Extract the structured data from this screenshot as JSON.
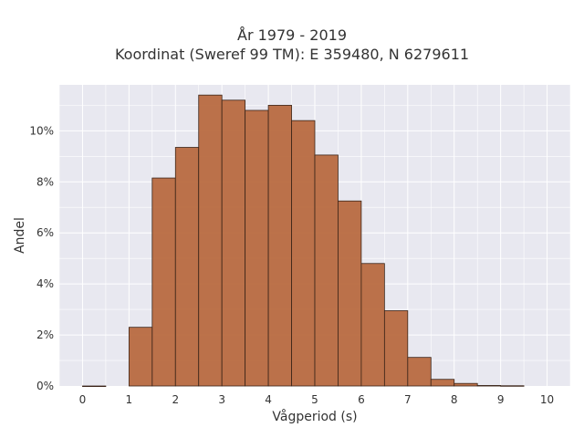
{
  "chart_data": {
    "type": "bar",
    "title_line1": "År 1979 - 2019",
    "title_line2": "Koordinat (Sweref 99 TM): E 359480, N 6279611",
    "xlabel": "Vågperiod (s)",
    "ylabel": "Andel",
    "bin_width": 0.5,
    "bins": [
      {
        "start": 0.0,
        "value": 0.0
      },
      {
        "start": 1.0,
        "value": 2.3
      },
      {
        "start": 1.5,
        "value": 8.15
      },
      {
        "start": 2.0,
        "value": 9.35
      },
      {
        "start": 2.5,
        "value": 11.4
      },
      {
        "start": 3.0,
        "value": 11.2
      },
      {
        "start": 3.5,
        "value": 10.8
      },
      {
        "start": 4.0,
        "value": 11.0
      },
      {
        "start": 4.5,
        "value": 10.4
      },
      {
        "start": 5.0,
        "value": 9.05
      },
      {
        "start": 5.5,
        "value": 7.25
      },
      {
        "start": 6.0,
        "value": 4.8
      },
      {
        "start": 6.5,
        "value": 2.95
      },
      {
        "start": 7.0,
        "value": 1.12
      },
      {
        "start": 7.5,
        "value": 0.26
      },
      {
        "start": 8.0,
        "value": 0.1
      },
      {
        "start": 8.5,
        "value": 0.02
      },
      {
        "start": 9.0,
        "value": 0.01
      }
    ],
    "xlim": [
      -0.5,
      10.5
    ],
    "ylim": [
      0,
      11.8
    ],
    "x_ticks": [
      0,
      1,
      2,
      3,
      4,
      5,
      6,
      7,
      8,
      9,
      10
    ],
    "x_tick_labels": [
      "0",
      "1",
      "2",
      "3",
      "4",
      "5",
      "6",
      "7",
      "8",
      "9",
      "10"
    ],
    "y_ticks": [
      0,
      2,
      4,
      6,
      8,
      10
    ],
    "y_tick_labels": [
      "0%",
      "2%",
      "4%",
      "6%",
      "8%",
      "10%"
    ],
    "grid": true,
    "colors": {
      "bar_fill": "#b86a40",
      "bar_stroke": "#3a2418",
      "plot_background": "#e8e8f0",
      "grid_line": "#ffffff"
    }
  }
}
